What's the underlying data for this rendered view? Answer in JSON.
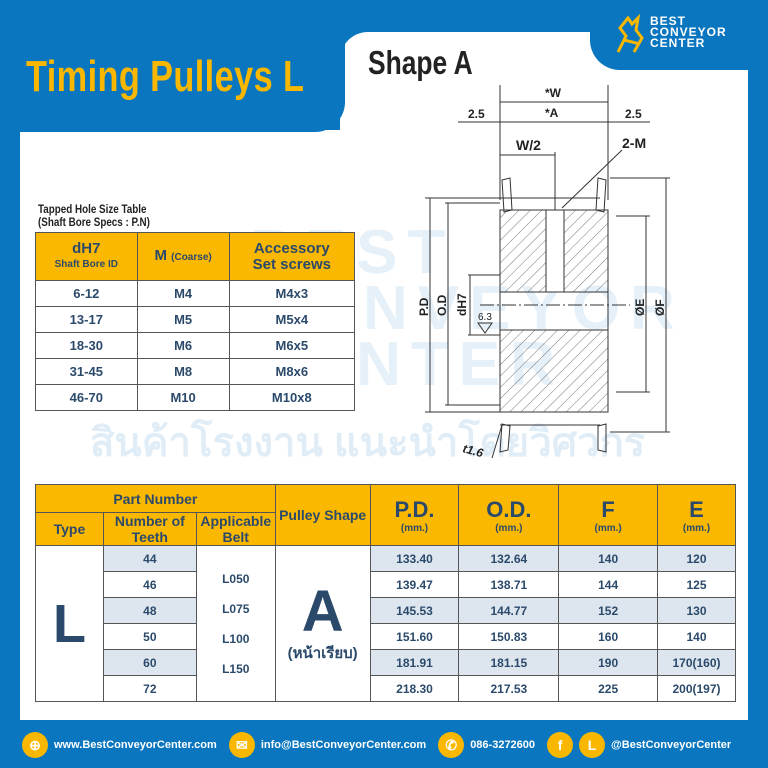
{
  "header": {
    "title": "Timing Pulleys L",
    "shape_title": "Shape A",
    "logo_lines": [
      "BEST",
      "CONVEYOR",
      "CENTER"
    ]
  },
  "watermark": {
    "thai": "สินค้าโรงงาน แนะนำโดยวิศวกร",
    "lines": [
      "BEST",
      "CONVEYOR",
      "CENTER"
    ]
  },
  "drawing": {
    "labels": {
      "w": "*W",
      "a": "*A",
      "left": "2.5",
      "right": "2.5",
      "w2": "W/2",
      "m": "2-M",
      "pd": "P.D",
      "od": "O.D",
      "dh7": "dH7",
      "e": "ØE",
      "f": "ØF",
      "rough": "6.3",
      "t": "t1.6"
    }
  },
  "tapped": {
    "caption1": "Tapped Hole Size Table",
    "caption2": "(Shaft Bore Specs : P.N)",
    "headers": {
      "c1": "dH7",
      "c1sub": "Shaft Bore ID",
      "c2": "M",
      "c2sub": "(Coarse)",
      "c3a": "Accessory",
      "c3b": "Set screws"
    },
    "rows": [
      [
        "6-12",
        "M4",
        "M4x3"
      ],
      [
        "13-17",
        "M5",
        "M5x4"
      ],
      [
        "18-30",
        "M6",
        "M6x5"
      ],
      [
        "31-45",
        "M8",
        "M8x6"
      ],
      [
        "46-70",
        "M10",
        "M10x8"
      ]
    ]
  },
  "main": {
    "headers": {
      "part": "Part Number",
      "type": "Type",
      "teeth": "Number of Teeth",
      "belt": "Applicable Belt",
      "shape": "Pulley Shape",
      "pd": "P.D.",
      "od": "O.D.",
      "f": "F",
      "e": "E",
      "unit": "(mm.)"
    },
    "type": "L",
    "belts": [
      "L050",
      "L075",
      "L100",
      "L150"
    ],
    "shape": "A",
    "shape_sub": "(หน้าเรียบ)",
    "rows": [
      [
        "44",
        "133.40",
        "132.64",
        "140",
        "120"
      ],
      [
        "46",
        "139.47",
        "138.71",
        "144",
        "125"
      ],
      [
        "48",
        "145.53",
        "144.77",
        "152",
        "130"
      ],
      [
        "50",
        "151.60",
        "150.83",
        "160",
        "140"
      ],
      [
        "60",
        "181.91",
        "181.15",
        "190",
        "170(160)"
      ],
      [
        "72",
        "218.30",
        "217.53",
        "225",
        "200(197)"
      ]
    ]
  },
  "footer": {
    "web": "www.BestConveyorCenter.com",
    "email": "info@BestConveyorCenter.com",
    "phone": "086-3272600",
    "social": "@BestConveyorCenter",
    "line_letter": "L",
    "fb_letter": "f"
  },
  "colors": {
    "blue": "#0a76bf",
    "yellow": "#fbb800",
    "text": "#2b4a6b",
    "row_shade": "#dde6ee"
  }
}
